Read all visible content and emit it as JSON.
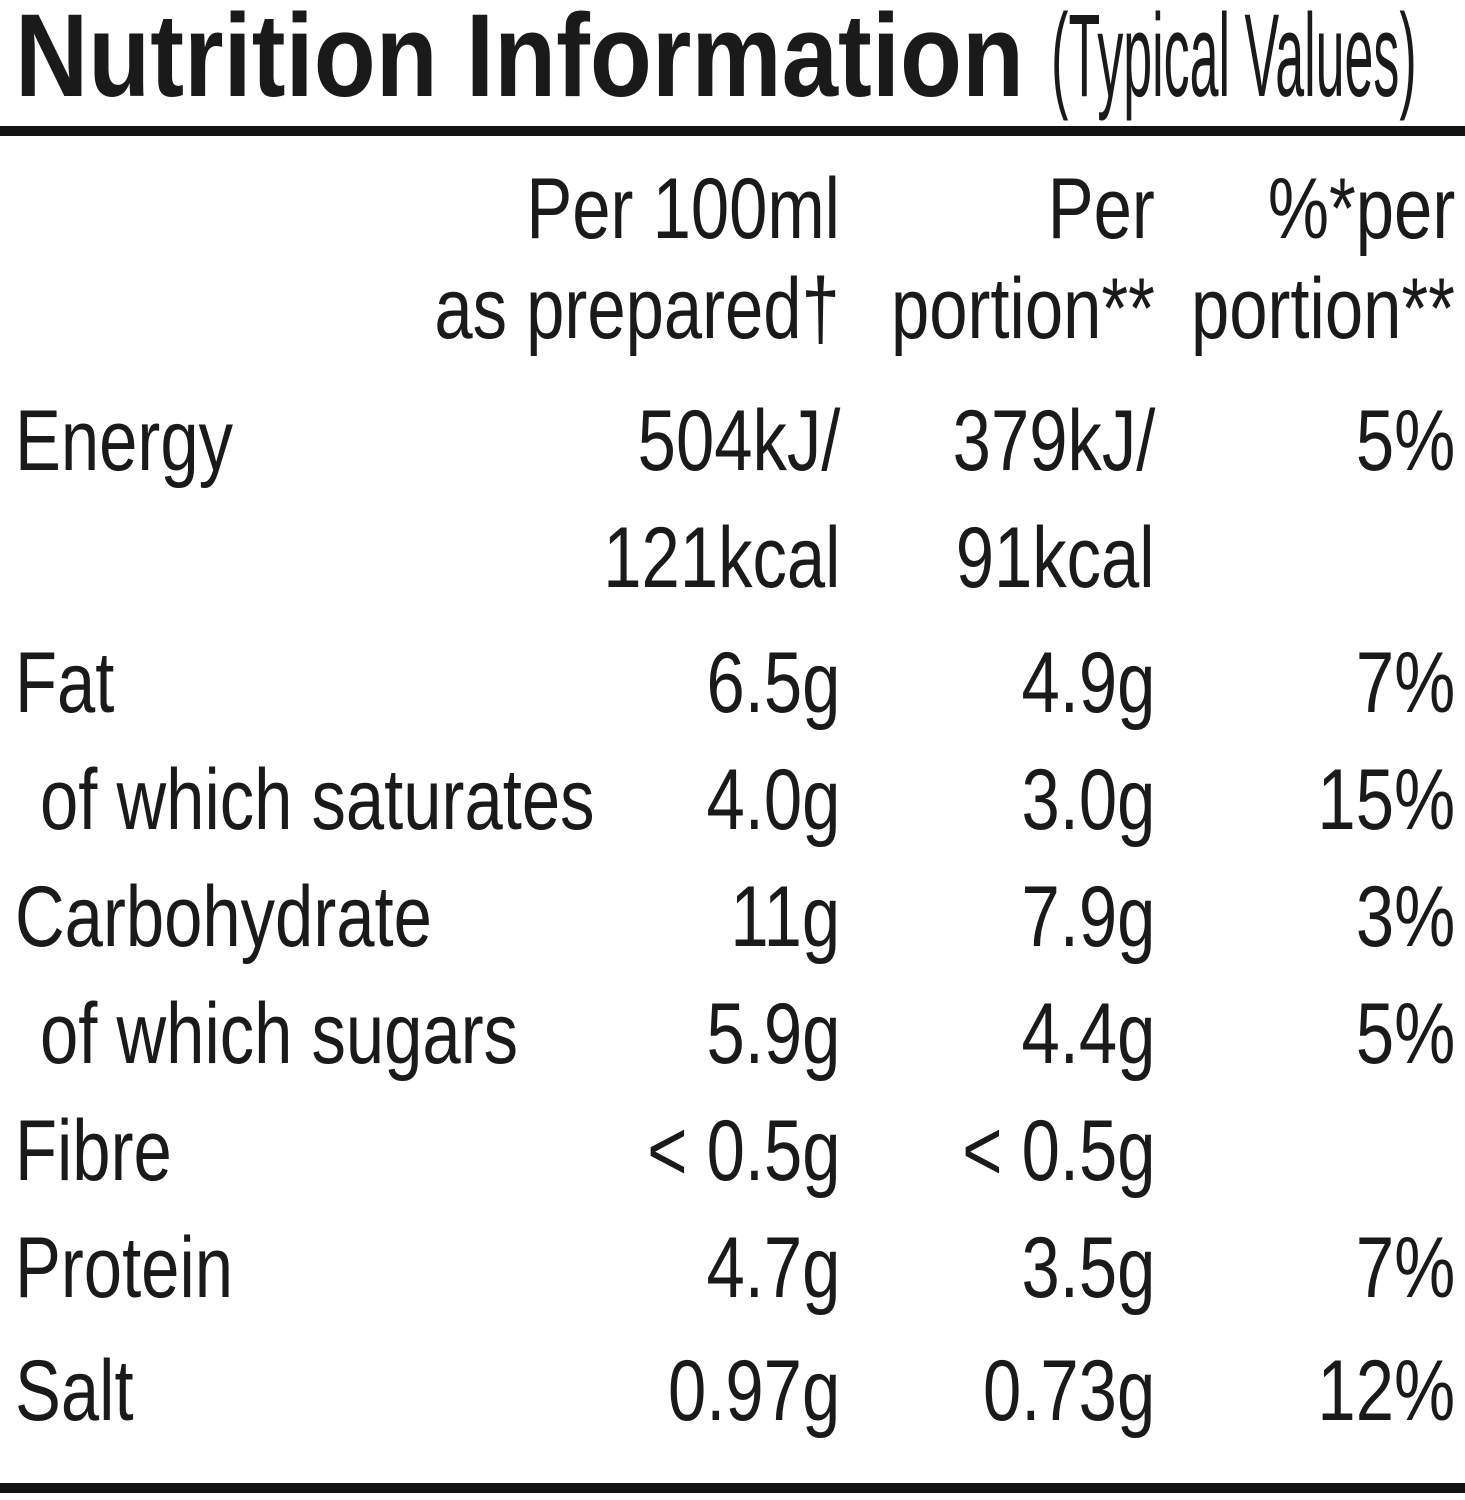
{
  "title": {
    "main": "Nutrition Information",
    "suffix": "(Typical Values)"
  },
  "table": {
    "header_cols": [
      {
        "lines": [
          "Per 100ml",
          "as prepared†"
        ]
      },
      {
        "lines": [
          "Per",
          "portion**"
        ]
      },
      {
        "lines": [
          "%*per",
          "portion**"
        ]
      }
    ],
    "rows": [
      {
        "label": "Energy",
        "indent": false,
        "per100": [
          "504kJ/",
          "121kcal"
        ],
        "portion": [
          "379kJ/",
          "91kcal"
        ],
        "pct": "5%"
      },
      {
        "label": "Fat",
        "indent": false,
        "per100": [
          "6.5g"
        ],
        "portion": [
          "4.9g"
        ],
        "pct": "7%"
      },
      {
        "label": "of which saturates",
        "indent": true,
        "per100": [
          "4.0g"
        ],
        "portion": [
          "3.0g"
        ],
        "pct": "15%"
      },
      {
        "label": "Carbohydrate",
        "indent": false,
        "per100": [
          "11g"
        ],
        "portion": [
          "7.9g"
        ],
        "pct": "3%"
      },
      {
        "label": "of which sugars",
        "indent": true,
        "per100": [
          "5.9g"
        ],
        "portion": [
          "4.4g"
        ],
        "pct": "5%"
      },
      {
        "label": "Fibre",
        "indent": false,
        "per100": [
          "< 0.5g"
        ],
        "portion": [
          "< 0.5g"
        ],
        "pct": ""
      },
      {
        "label": "Protein",
        "indent": false,
        "per100": [
          "4.7g"
        ],
        "portion": [
          "3.5g"
        ],
        "pct": "7%"
      },
      {
        "label": "Salt",
        "indent": false,
        "per100": [
          "0.97g"
        ],
        "portion": [
          "0.73g"
        ],
        "pct": "12%"
      }
    ]
  },
  "colors": {
    "background": "#ffffff",
    "text": "#1a1a1a",
    "rule": "#121212"
  }
}
